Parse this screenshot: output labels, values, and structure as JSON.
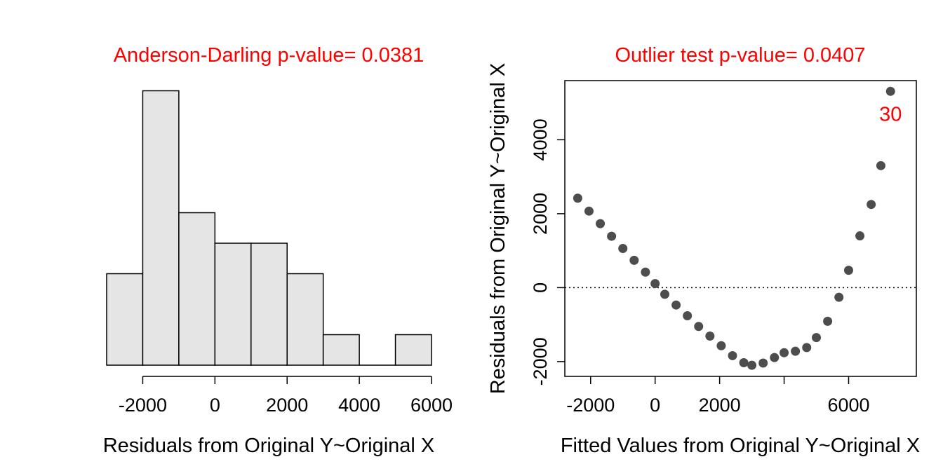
{
  "chart_data": [
    {
      "type": "bar",
      "title": "Anderson-Darling p-value= 0.0381",
      "xlabel": "Residuals from Original Y~Original X",
      "ylabel": "",
      "bin_edges": [
        -3000,
        -2000,
        -1000,
        0,
        1000,
        2000,
        3000,
        4000,
        5000,
        6000
      ],
      "values": [
        3,
        9,
        5,
        4,
        4,
        3,
        1,
        0,
        1
      ],
      "xlim": [
        -3000,
        6000
      ],
      "xticks": [
        -2000,
        0,
        2000,
        4000,
        6000
      ],
      "xtick_labels": [
        "-2000",
        "0",
        "2000",
        "4000",
        "6000"
      ],
      "bar_color": "#e5e5e5",
      "title_color": "#ff0000",
      "grid": false
    },
    {
      "type": "scatter",
      "title": "Outlier test p-value= 0.0407",
      "xlabel": "Fitted Values from Original Y~Original X",
      "ylabel": "Residuals from Original Y~Original X",
      "xlim": [
        -2800,
        8100
      ],
      "ylim": [
        -2400,
        5600
      ],
      "xticks": [
        -2000,
        0,
        2000,
        4000,
        6000
      ],
      "xtick_labels": [
        "-2000",
        "0",
        "2000",
        "",
        "6000"
      ],
      "yticks": [
        -2000,
        0,
        2000,
        4000
      ],
      "ytick_labels": [
        "-2000",
        "0",
        "2000",
        "4000"
      ],
      "reference_line_y": 0,
      "point_color": "#4d4d4d",
      "title_color": "#ff0000",
      "grid": false,
      "points": [
        {
          "x": -2400,
          "y": 2420
        },
        {
          "x": -2050,
          "y": 2070
        },
        {
          "x": -1700,
          "y": 1730
        },
        {
          "x": -1350,
          "y": 1390
        },
        {
          "x": -1000,
          "y": 1060
        },
        {
          "x": -650,
          "y": 740
        },
        {
          "x": -300,
          "y": 420
        },
        {
          "x": 0,
          "y": 110
        },
        {
          "x": 300,
          "y": -180
        },
        {
          "x": 650,
          "y": -470
        },
        {
          "x": 1000,
          "y": -760
        },
        {
          "x": 1350,
          "y": -1050
        },
        {
          "x": 1700,
          "y": -1310
        },
        {
          "x": 2050,
          "y": -1570
        },
        {
          "x": 2400,
          "y": -1840
        },
        {
          "x": 2750,
          "y": -2030
        },
        {
          "x": 3000,
          "y": -2100
        },
        {
          "x": 3350,
          "y": -2040
        },
        {
          "x": 3700,
          "y": -1890
        },
        {
          "x": 4000,
          "y": -1760
        },
        {
          "x": 4350,
          "y": -1720
        },
        {
          "x": 4700,
          "y": -1620
        },
        {
          "x": 5000,
          "y": -1350
        },
        {
          "x": 5350,
          "y": -910
        },
        {
          "x": 5700,
          "y": -260
        },
        {
          "x": 6000,
          "y": 470
        },
        {
          "x": 6350,
          "y": 1400
        },
        {
          "x": 6700,
          "y": 2250
        },
        {
          "x": 7000,
          "y": 3300
        },
        {
          "x": 7300,
          "y": 5310,
          "label": "30"
        }
      ]
    }
  ]
}
